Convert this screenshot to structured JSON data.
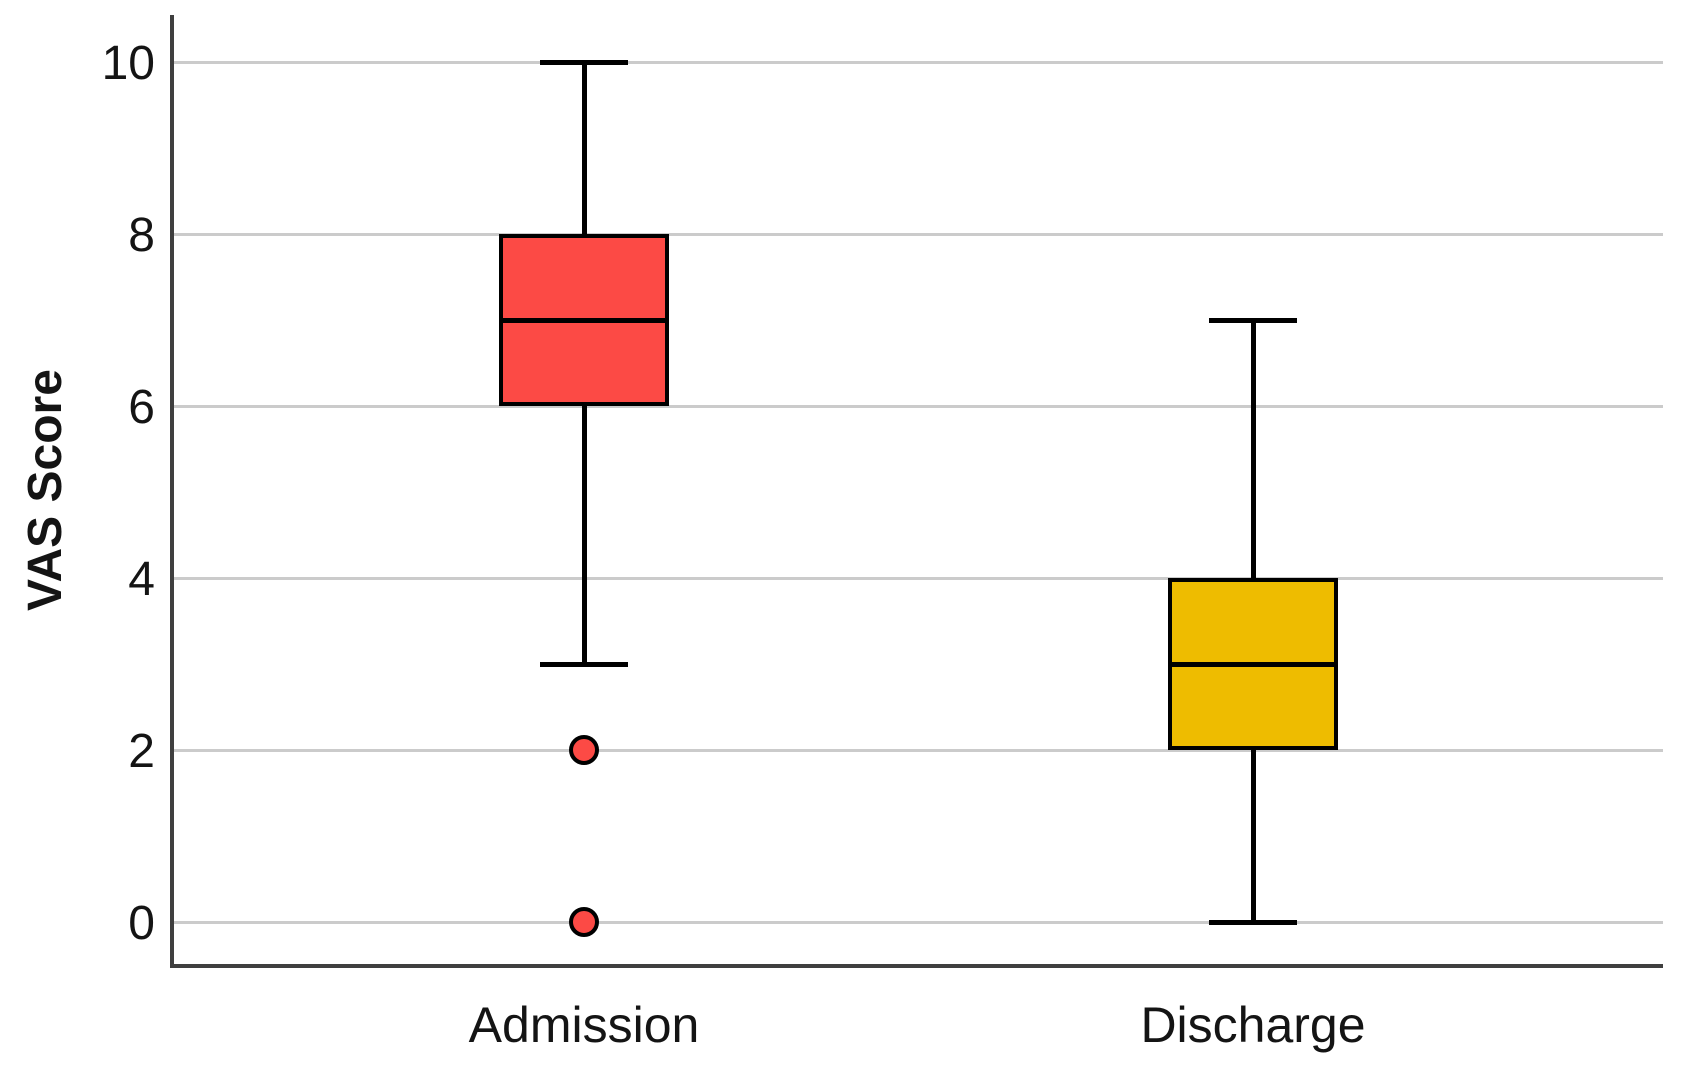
{
  "chart_data": {
    "type": "box",
    "title": "",
    "ylabel": "VAS Score",
    "xlabel": "",
    "categories": [
      "Admission",
      "Discharge"
    ],
    "y_ticks": [
      0,
      2,
      4,
      6,
      8,
      10
    ],
    "ylim": [
      -0.55,
      10.55
    ],
    "grid": true,
    "legend": false,
    "series": [
      {
        "name": "Admission",
        "whisker_low": 3,
        "q1": 6,
        "median": 7,
        "q3": 8,
        "whisker_high": 10,
        "outliers": [
          2,
          0
        ],
        "fill_color": "#FC4A45"
      },
      {
        "name": "Discharge",
        "whisker_low": 0,
        "q1": 2,
        "median": 3,
        "q3": 4,
        "whisker_high": 7,
        "outliers": [],
        "fill_color": "#EEBC00"
      }
    ],
    "colors": {
      "box_stroke": "#000000",
      "gridline": "#CBCBCB",
      "axis_line": "#3F3F3F",
      "text": "#141414"
    }
  }
}
